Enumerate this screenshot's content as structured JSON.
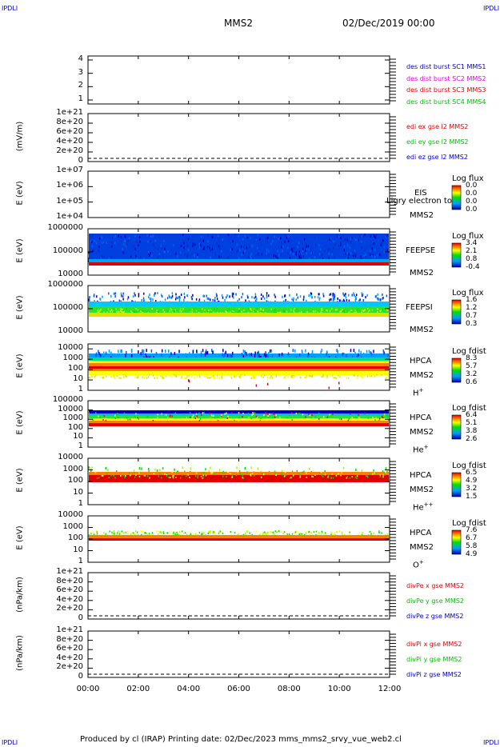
{
  "corners": {
    "tl": "IPDLI",
    "tr": "IPDLI",
    "bl": "IPDLI",
    "br": "IPDLI"
  },
  "header": {
    "mission": "MMS2",
    "date": "02/Dec/2019 00:00"
  },
  "footer": {
    "text": "Produced by cl (IRAP)   Printing date: 02/Dec/2023   mms_mms2_srvy_vue_web2.cl"
  },
  "x_ticks": [
    "00:00",
    "02:00",
    "04:00",
    "06:00",
    "08:00",
    "10:00",
    "12:00"
  ],
  "chart_data": [
    {
      "type": "line",
      "ylabel": "",
      "y_ticks": [
        "4",
        "3",
        "2",
        "1"
      ],
      "ylim": [
        0.7,
        4.3
      ],
      "legend": [
        {
          "label": "des dist burst SC1 MMS1",
          "color": "#0000c0"
        },
        {
          "label": "des dist burst SC2 MMS2",
          "color": "#e000e0"
        },
        {
          "label": "des dist burst SC3 MMS3",
          "color": "#e00000"
        },
        {
          "label": "des dist burst SC4 MMS4",
          "color": "#00c000"
        }
      ]
    },
    {
      "type": "line",
      "ylabel": "(mV/m)",
      "y_ticks": [
        "1e+21",
        "8e+20",
        "6e+20",
        "4e+20",
        "2e+20",
        "0"
      ],
      "ylim": [
        0,
        1e+21
      ],
      "legend": [
        {
          "label": "edi ex gse l2 MMS2",
          "color": "#e00000"
        },
        {
          "label": "edi ey gse l2 MMS2",
          "color": "#00c000"
        },
        {
          "label": "edi ez gse l2 MMS2",
          "color": "#0000c0"
        }
      ]
    },
    {
      "type": "heatmap",
      "ylabel": "E (eV)",
      "y_ticks": [
        "1e+07",
        "1e+06",
        "1e+05",
        "1e+04"
      ],
      "log": true,
      "ylim": [
        10000,
        10000000
      ],
      "instrument": [
        "EIS",
        "MMS2"
      ],
      "cbar_title": "Log flux",
      "cbar_values": [
        "0.0",
        "0.0",
        "0.0",
        "0.0"
      ],
      "overlay": "Ligry electron to"
    },
    {
      "type": "heatmap",
      "ylabel": "E (eV)",
      "y_ticks": [
        "1000000",
        "100000",
        "10000"
      ],
      "log": true,
      "ylim": [
        10000,
        1000000
      ],
      "instrument": [
        "FEEPSE",
        "MMS2"
      ],
      "cbar_title": "Log flux",
      "cbar_values": [
        "3.4",
        "2.1",
        "0.8",
        "-0.4"
      ]
    },
    {
      "type": "heatmap",
      "ylabel": "E (eV)",
      "y_ticks": [
        "1000000",
        "100000",
        "10000"
      ],
      "log": true,
      "ylim": [
        10000,
        1000000
      ],
      "instrument": [
        "FEEPSI",
        "MMS2"
      ],
      "cbar_title": "Log flux",
      "cbar_values": [
        "1.6",
        "1.2",
        "0.7",
        "0.3"
      ]
    },
    {
      "type": "heatmap",
      "ylabel": "E (eV)",
      "y_ticks": [
        "10000",
        "1000",
        "100",
        "10",
        "1"
      ],
      "log": true,
      "ylim": [
        1,
        30000
      ],
      "instrument": [
        "HPCA",
        "MMS2"
      ],
      "species": "H",
      "species_sup": "+",
      "cbar_title": "Log fdist",
      "cbar_values": [
        "8.3",
        "5.7",
        "3.2",
        "0.6"
      ]
    },
    {
      "type": "heatmap",
      "ylabel": "E (eV)",
      "y_ticks": [
        "100000",
        "10000",
        "1000",
        "100",
        "10",
        "1"
      ],
      "log": true,
      "ylim": [
        1,
        100000
      ],
      "instrument": [
        "HPCA",
        "MMS2"
      ],
      "species": "He",
      "species_sup": "+",
      "cbar_title": "Log fdist",
      "cbar_values": [
        "6.4",
        "5.1",
        "3.8",
        "2.6"
      ]
    },
    {
      "type": "heatmap",
      "ylabel": "E (eV)",
      "y_ticks": [
        "10000",
        "1000",
        "100",
        "10",
        "1"
      ],
      "log": true,
      "ylim": [
        1,
        10000
      ],
      "instrument": [
        "HPCA",
        "MMS2"
      ],
      "species": "He",
      "species_sup": "++",
      "cbar_title": "Log fdist",
      "cbar_values": [
        "6.5",
        "4.9",
        "3.2",
        "1.5"
      ]
    },
    {
      "type": "heatmap",
      "ylabel": "E (eV)",
      "y_ticks": [
        "10000",
        "1000",
        "100",
        "10",
        "1"
      ],
      "log": true,
      "ylim": [
        1,
        10000
      ],
      "instrument": [
        "HPCA",
        "MMS2"
      ],
      "species": "O",
      "species_sup": "+",
      "cbar_title": "Log fdist",
      "cbar_values": [
        "7.6",
        "6.7",
        "5.8",
        "4.9"
      ]
    },
    {
      "type": "line",
      "ylabel": "(nPa/km)",
      "y_ticks": [
        "1e+21",
        "8e+20",
        "6e+20",
        "4e+20",
        "2e+20",
        "0"
      ],
      "ylim": [
        0,
        1e+21
      ],
      "legend": [
        {
          "label": "divPe x gse MMS2",
          "color": "#e00000"
        },
        {
          "label": "divPe y gse MMS2",
          "color": "#00c000"
        },
        {
          "label": "divPe z gse MMS2",
          "color": "#0000c0"
        }
      ]
    },
    {
      "type": "line",
      "ylabel": "(nPa/km)",
      "y_ticks": [
        "1e+21",
        "8e+20",
        "6e+20",
        "4e+20",
        "2e+20",
        "0"
      ],
      "ylim": [
        0,
        1e+21
      ],
      "legend": [
        {
          "label": "divPi x gse MMS2",
          "color": "#e00000"
        },
        {
          "label": "divPi y gse MMS2",
          "color": "#00c000"
        },
        {
          "label": "divPi z gse MMS2",
          "color": "#0000c0"
        }
      ]
    }
  ]
}
